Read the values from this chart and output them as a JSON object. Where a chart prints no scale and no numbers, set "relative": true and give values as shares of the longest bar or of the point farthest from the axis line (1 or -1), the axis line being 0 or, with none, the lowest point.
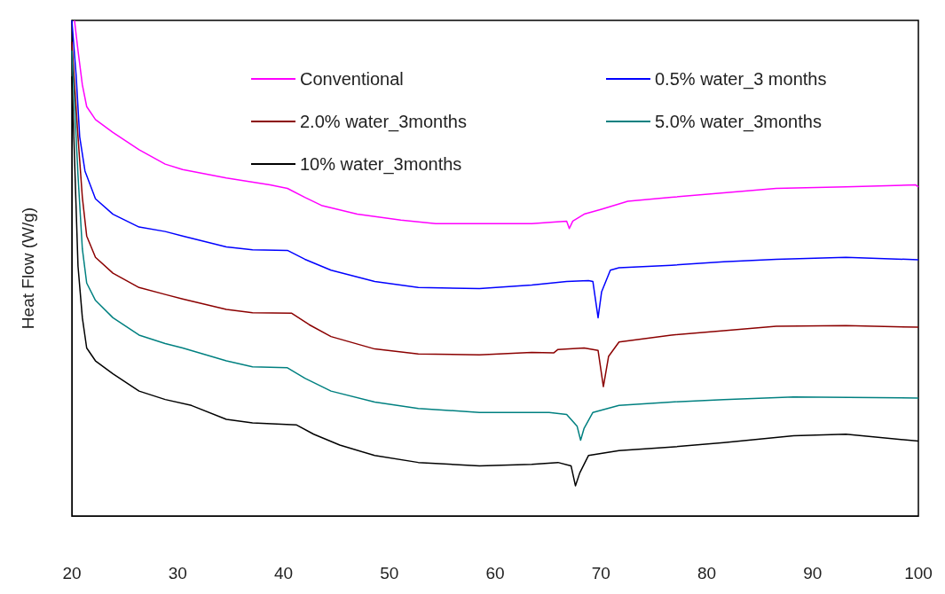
{
  "chart_data": {
    "type": "line",
    "relative": true,
    "ylabel": "Heat Flow (W/g)",
    "xlim": [
      20,
      100
    ],
    "xticks": [
      20,
      30,
      40,
      50,
      60,
      70,
      80,
      90,
      100
    ],
    "grid": false,
    "legend": "top",
    "marker": "none",
    "line_style": "solid",
    "series": [
      {
        "name": "Conventional",
        "color": "#ff00ff",
        "x": [
          20.25,
          20.58,
          20.99,
          21.4,
          22.23,
          23.88,
          26.35,
          28.82,
          30.47,
          34.6,
          38.72,
          40.37,
          42.02,
          43.67,
          46.97,
          51.09,
          54.39,
          59.34,
          63.46,
          65.53,
          66.76,
          67.01,
          67.34,
          68.41,
          70.06,
          72.54,
          76.66,
          81.61,
          86.56,
          93.15,
          99.75,
          100
        ],
        "values": [
          1.0,
          0.939,
          0.87,
          0.826,
          0.8,
          0.774,
          0.739,
          0.71,
          0.699,
          0.682,
          0.668,
          0.661,
          0.643,
          0.626,
          0.609,
          0.597,
          0.59,
          0.59,
          0.59,
          0.593,
          0.595,
          0.58,
          0.595,
          0.609,
          0.619,
          0.635,
          0.643,
          0.652,
          0.661,
          0.664,
          0.668,
          0.664
        ]
      },
      {
        "name": "0.5% water_3 months",
        "color": "#0000ff",
        "x": [
          20,
          20.41,
          20.74,
          21.24,
          22.23,
          23.88,
          26.35,
          28.82,
          30.47,
          34.6,
          37.07,
          40.37,
          42.02,
          44.49,
          48.62,
          52.74,
          58.52,
          63.46,
          66.76,
          68.82,
          69.24,
          69.73,
          70.06,
          70.89,
          71.71,
          76.66,
          81.61,
          86.56,
          93.15,
          100
        ],
        "values": [
          1.0,
          0.887,
          0.765,
          0.696,
          0.64,
          0.609,
          0.583,
          0.574,
          0.565,
          0.543,
          0.537,
          0.536,
          0.518,
          0.496,
          0.473,
          0.461,
          0.459,
          0.466,
          0.473,
          0.475,
          0.473,
          0.4,
          0.452,
          0.496,
          0.501,
          0.506,
          0.513,
          0.518,
          0.522,
          0.517
        ]
      },
      {
        "name": "2.0% water_3months",
        "color": "#8b0000",
        "x": [
          20,
          20.58,
          20.99,
          21.4,
          22.23,
          23.88,
          26.35,
          28.82,
          30.47,
          34.6,
          37.07,
          40.78,
          42.43,
          44.49,
          48.62,
          52.74,
          58.52,
          63.46,
          65.53,
          65.94,
          68.41,
          69.73,
          70.23,
          70.72,
          71.71,
          76.66,
          81.61,
          86.56,
          93.15,
          100
        ],
        "values": [
          0.957,
          0.765,
          0.643,
          0.565,
          0.522,
          0.49,
          0.461,
          0.447,
          0.438,
          0.417,
          0.41,
          0.409,
          0.386,
          0.362,
          0.337,
          0.327,
          0.325,
          0.33,
          0.329,
          0.336,
          0.339,
          0.334,
          0.261,
          0.322,
          0.351,
          0.365,
          0.374,
          0.383,
          0.384,
          0.381
        ]
      },
      {
        "name": "5.0% water_3months",
        "color": "#008080",
        "x": [
          20,
          20.58,
          20.99,
          21.4,
          22.23,
          23.88,
          26.35,
          28.82,
          30.47,
          34.6,
          37.07,
          40.37,
          42.02,
          44.49,
          48.62,
          52.74,
          58.52,
          65.11,
          66.76,
          67.75,
          68.08,
          68.41,
          69.24,
          71.71,
          76.66,
          81.61,
          88.21,
          100
        ],
        "values": [
          0.939,
          0.687,
          0.539,
          0.47,
          0.435,
          0.4,
          0.365,
          0.348,
          0.339,
          0.313,
          0.301,
          0.299,
          0.278,
          0.252,
          0.23,
          0.217,
          0.209,
          0.209,
          0.205,
          0.181,
          0.153,
          0.177,
          0.209,
          0.223,
          0.23,
          0.235,
          0.24,
          0.238
        ]
      },
      {
        "name": "10% water_3months",
        "color": "#000000",
        "x": [
          20,
          20.58,
          20.99,
          21.4,
          22.23,
          23.88,
          26.35,
          28.82,
          31.3,
          34.6,
          37.07,
          41.2,
          42.85,
          45.32,
          48.62,
          52.74,
          58.52,
          63.46,
          65.94,
          67.18,
          67.59,
          68.0,
          68.82,
          71.71,
          76.66,
          81.61,
          88.21,
          93.15,
          100
        ],
        "values": [
          0.887,
          0.504,
          0.4,
          0.339,
          0.313,
          0.287,
          0.252,
          0.235,
          0.223,
          0.195,
          0.188,
          0.184,
          0.165,
          0.143,
          0.122,
          0.108,
          0.101,
          0.104,
          0.108,
          0.101,
          0.061,
          0.087,
          0.122,
          0.132,
          0.139,
          0.148,
          0.162,
          0.165,
          0.151
        ]
      }
    ]
  }
}
